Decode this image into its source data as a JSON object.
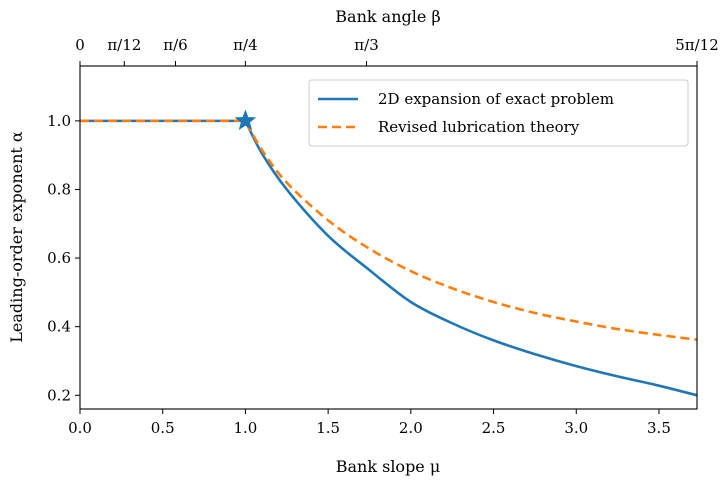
{
  "chart_data": {
    "type": "line",
    "x_axis": {
      "label": "Bank slope μ",
      "range": [
        0.0,
        3.73
      ],
      "ticks": [
        0.0,
        0.5,
        1.0,
        1.5,
        2.0,
        2.5,
        3.0,
        3.5
      ],
      "tick_labels": [
        "0.0",
        "0.5",
        "1.0",
        "1.5",
        "2.0",
        "2.5",
        "3.0",
        "3.5"
      ]
    },
    "y_axis": {
      "label": "Leading-order exponent α",
      "range": [
        0.16,
        1.16
      ],
      "ticks": [
        0.2,
        0.4,
        0.6,
        0.8,
        1.0
      ],
      "tick_labels": [
        "0.2",
        "0.4",
        "0.6",
        "0.8",
        "1.0"
      ]
    },
    "top_axis": {
      "label": "Bank angle β",
      "ticks_mu": [
        0.0,
        0.2679,
        0.5774,
        1.0,
        1.7321,
        3.7321
      ],
      "tick_labels": [
        "0",
        "π/12",
        "π/6",
        "π/4",
        "π/3",
        "5π/12"
      ]
    },
    "legend_position": "top-right",
    "grid": false,
    "series": [
      {
        "name": "2D expansion of exact problem",
        "color": "#1f77b4",
        "style": "solid",
        "x": [
          0.0,
          0.5,
          1.0,
          1.1,
          1.25,
          1.5,
          1.75,
          2.0,
          2.25,
          2.5,
          2.75,
          3.0,
          3.25,
          3.5,
          3.73
        ],
        "y": [
          1.0,
          1.0,
          1.0,
          0.905,
          0.8,
          0.665,
          0.565,
          0.472,
          0.41,
          0.36,
          0.32,
          0.285,
          0.255,
          0.228,
          0.2
        ]
      },
      {
        "name": "Revised lubrication theory",
        "color": "#ff7f0e",
        "style": "dashed",
        "x": [
          0.0,
          0.5,
          1.0,
          1.1,
          1.25,
          1.5,
          1.75,
          2.0,
          2.25,
          2.5,
          2.75,
          3.0,
          3.25,
          3.5,
          3.73
        ],
        "y": [
          1.0,
          1.0,
          1.0,
          0.915,
          0.82,
          0.71,
          0.627,
          0.562,
          0.512,
          0.472,
          0.44,
          0.415,
          0.393,
          0.376,
          0.362
        ]
      }
    ],
    "marker": {
      "shape": "star",
      "x": 1.0,
      "y": 1.0,
      "color": "#1f77b4"
    }
  }
}
